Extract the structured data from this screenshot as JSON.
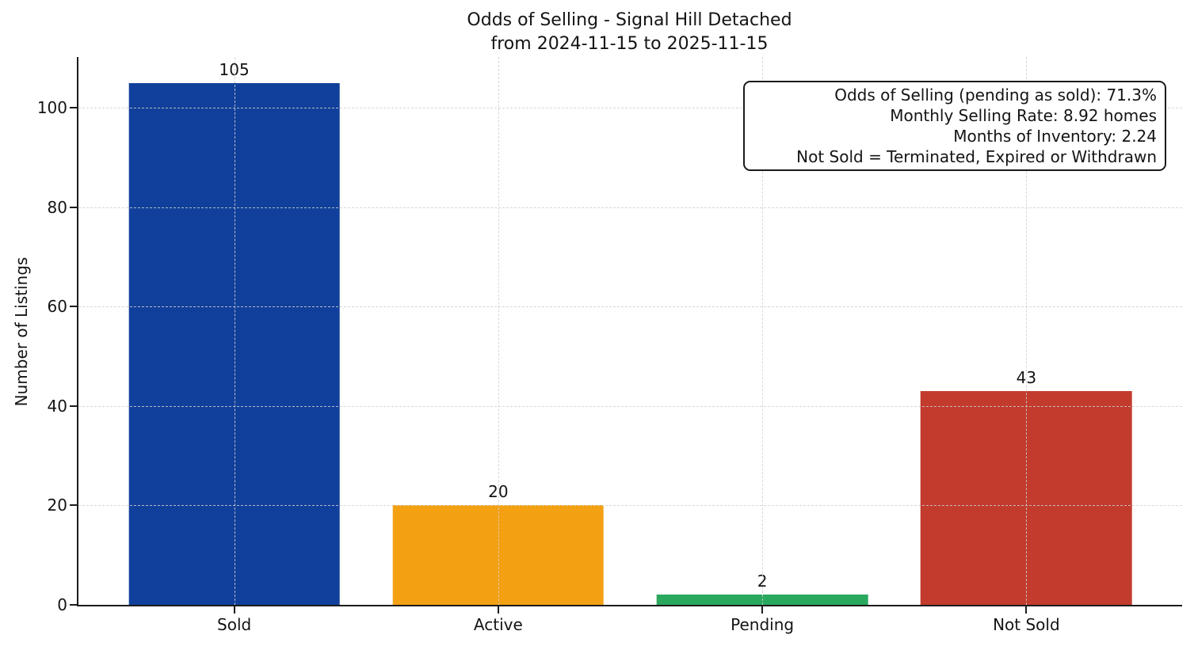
{
  "chart_data": {
    "type": "bar",
    "title": "Odds of Selling - Signal Hill Detached",
    "subtitle": "from 2024-11-15 to 2025-11-15",
    "categories": [
      "Sold",
      "Active",
      "Pending",
      "Not Sold"
    ],
    "values": [
      105,
      20,
      2,
      43
    ],
    "bar_colors": [
      "#10409b",
      "#f3a013",
      "#2aa85e",
      "#c23b2c"
    ],
    "xlabel": "",
    "ylabel": "Number of Listings",
    "ylim": [
      0,
      110.25
    ],
    "xlim": [
      -0.59,
      3.59
    ],
    "bar_width": 0.8,
    "yticks": [
      0,
      20,
      40,
      60,
      80,
      100
    ],
    "grid": "dashed gridlines on both axes, drawn over bars",
    "legend": "none",
    "annotation": {
      "lines": [
        "Odds of Selling (pending as sold): 71.3%",
        "Monthly Selling Rate: 8.92 homes",
        "Months of Inventory: 2.24",
        "Not Sold = Terminated, Expired or Withdrawn"
      ]
    }
  }
}
